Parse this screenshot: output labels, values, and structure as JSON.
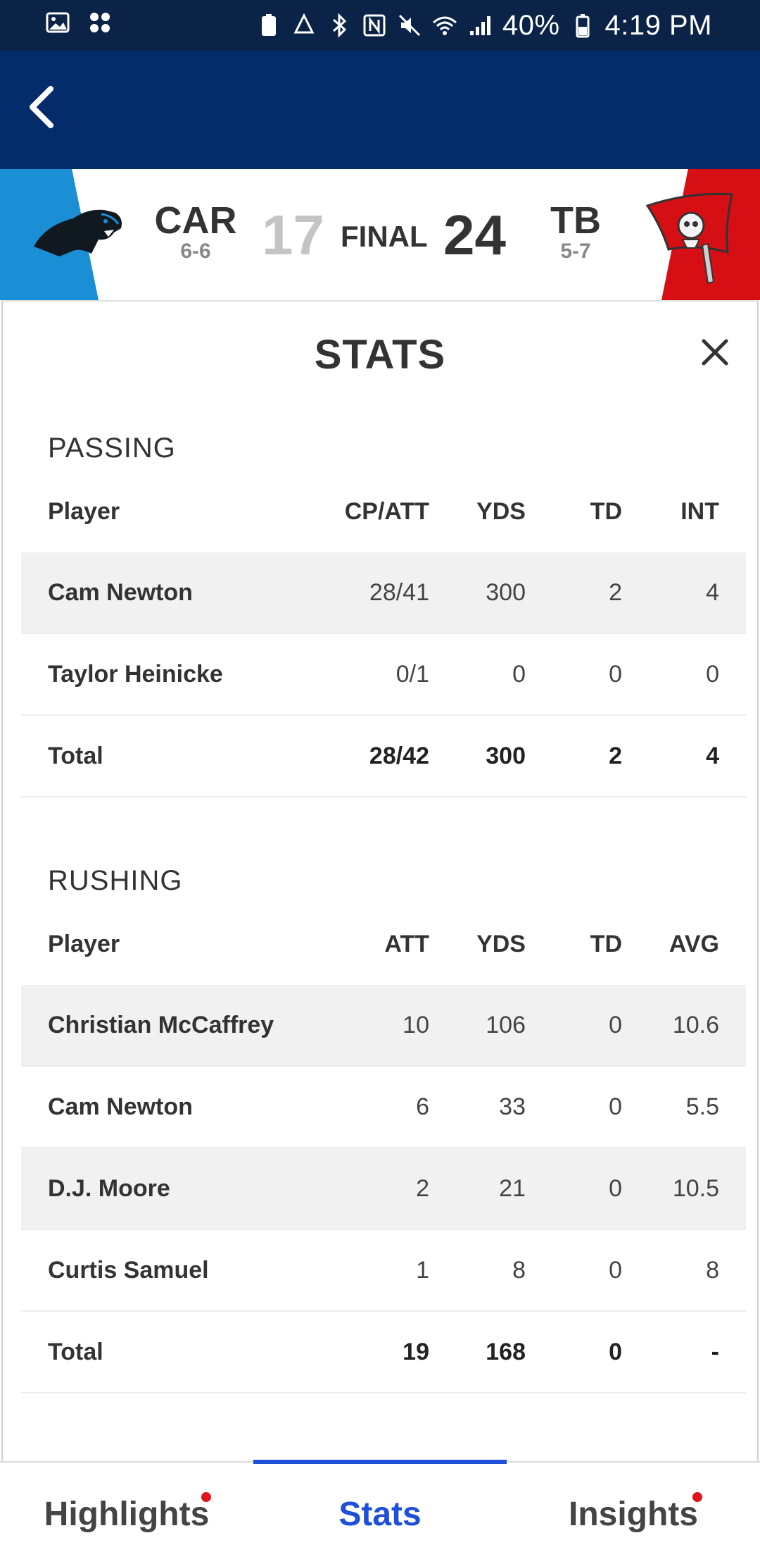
{
  "status_bar": {
    "battery": "40%",
    "time": "4:19 PM"
  },
  "game": {
    "away_team": {
      "abbr": "CAR",
      "record": "6-6",
      "score": "17",
      "color": "#1a8fd6"
    },
    "home_team": {
      "abbr": "TB",
      "record": "5-7",
      "score": "24",
      "color": "#d60f15"
    },
    "status": "FINAL"
  },
  "panel": {
    "title": "STATS"
  },
  "passing": {
    "title": "PASSING",
    "headers": [
      "Player",
      "CP/ATT",
      "YDS",
      "TD",
      "INT"
    ],
    "rows": [
      {
        "player": "Cam Newton",
        "c1": "28/41",
        "c2": "300",
        "c3": "2",
        "c4": "4"
      },
      {
        "player": "Taylor Heinicke",
        "c1": "0/1",
        "c2": "0",
        "c3": "0",
        "c4": "0"
      }
    ],
    "total": {
      "player": "Total",
      "c1": "28/42",
      "c2": "300",
      "c3": "2",
      "c4": "4"
    }
  },
  "rushing": {
    "title": "RUSHING",
    "headers": [
      "Player",
      "ATT",
      "YDS",
      "TD",
      "AVG"
    ],
    "rows": [
      {
        "player": "Christian McCaffrey",
        "c1": "10",
        "c2": "106",
        "c3": "0",
        "c4": "10.6"
      },
      {
        "player": "Cam Newton",
        "c1": "6",
        "c2": "33",
        "c3": "0",
        "c4": "5.5"
      },
      {
        "player": "D.J. Moore",
        "c1": "2",
        "c2": "21",
        "c3": "0",
        "c4": "10.5"
      },
      {
        "player": "Curtis Samuel",
        "c1": "1",
        "c2": "8",
        "c3": "0",
        "c4": "8"
      }
    ],
    "total": {
      "player": "Total",
      "c1": "19",
      "c2": "168",
      "c3": "0",
      "c4": "-"
    }
  },
  "bottom_nav": {
    "tabs": [
      {
        "label": "Highlights",
        "badge": true
      },
      {
        "label": "Stats",
        "active": true
      },
      {
        "label": "Insights",
        "badge": true
      }
    ],
    "accent": "#1d4fd8"
  }
}
